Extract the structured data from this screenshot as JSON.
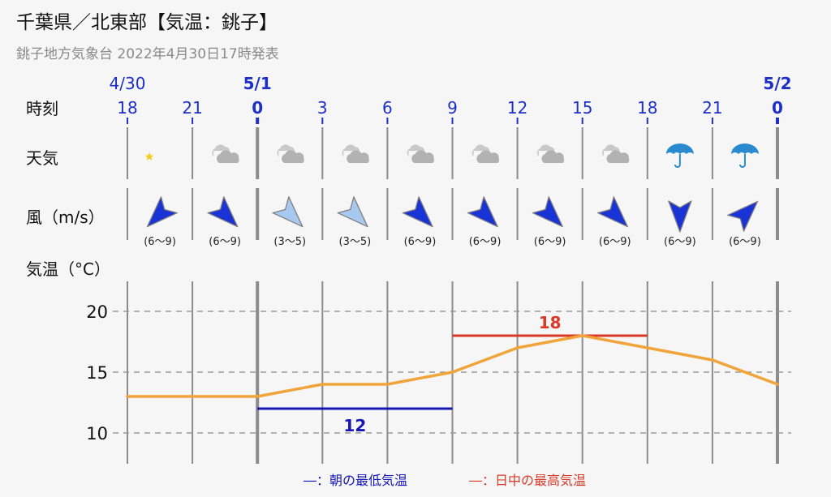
{
  "header": {
    "title": "千葉県／北東部【気温：銚子】",
    "subtitle": "銚子地方気象台 2022年4月30日17時発表"
  },
  "row_labels": {
    "time": "時刻",
    "weather": "天気",
    "wind": "風（m/s）",
    "temperature": "気温（°C）"
  },
  "dates": [
    {
      "label": "4/30",
      "index": 0
    },
    {
      "label": "5/1",
      "index": 2
    },
    {
      "label": "5/2",
      "index": 10
    }
  ],
  "times": [
    "18",
    "21",
    "0",
    "3",
    "6",
    "9",
    "12",
    "15",
    "18",
    "21",
    "0"
  ],
  "bold_time_indices": [
    2,
    10
  ],
  "weather": [
    "moon",
    "cloudy",
    "cloudy",
    "cloudy",
    "cloudy",
    "cloudy",
    "cloudy",
    "cloudy",
    "rain",
    "rain"
  ],
  "wind": [
    {
      "direction": "北東",
      "range": "(6〜9)",
      "strength": "strong"
    },
    {
      "direction": "北西",
      "range": "(6〜9)",
      "strength": "strong"
    },
    {
      "direction": "北西",
      "range": "(3〜5)",
      "strength": "light"
    },
    {
      "direction": "北西",
      "range": "(3〜5)",
      "strength": "light"
    },
    {
      "direction": "北西",
      "range": "(6〜9)",
      "strength": "strong"
    },
    {
      "direction": "北西",
      "range": "(6〜9)",
      "strength": "strong"
    },
    {
      "direction": "北西",
      "range": "(6〜9)",
      "strength": "strong"
    },
    {
      "direction": "北西",
      "range": "(6〜9)",
      "strength": "strong"
    },
    {
      "direction": "北",
      "range": "(6〜9)",
      "strength": "strong"
    },
    {
      "direction": "南西",
      "range": "(6〜9)",
      "strength": "strong"
    }
  ],
  "chart_data": {
    "type": "line",
    "x": [
      "18",
      "21",
      "0",
      "3",
      "6",
      "9",
      "12",
      "15",
      "18",
      "21",
      "0"
    ],
    "series": [
      {
        "values": [
          13,
          13,
          13,
          14,
          14,
          15,
          17,
          18,
          17,
          16,
          14
        ]
      }
    ],
    "ylim": [
      8,
      22.5
    ],
    "yticks": [
      10,
      15,
      20
    ],
    "grid": true,
    "min_temp": {
      "value": 12,
      "label": "12",
      "from_index": 2,
      "to_index": 5
    },
    "max_temp": {
      "value": 18,
      "label": "18",
      "from_index": 5,
      "to_index": 8
    }
  },
  "legend": {
    "min": "―：朝の最低気温",
    "max": "―：日中の最高気温"
  },
  "colors": {
    "line": "#f0a43a",
    "min": "#1515b8",
    "max": "#d93a28",
    "time_text": "#1c2fc8",
    "wind_strong": "#1a33d6",
    "wind_light": "#a7c8ef",
    "umbrella": "#2a8ad0",
    "moon": "#f3cf25"
  }
}
